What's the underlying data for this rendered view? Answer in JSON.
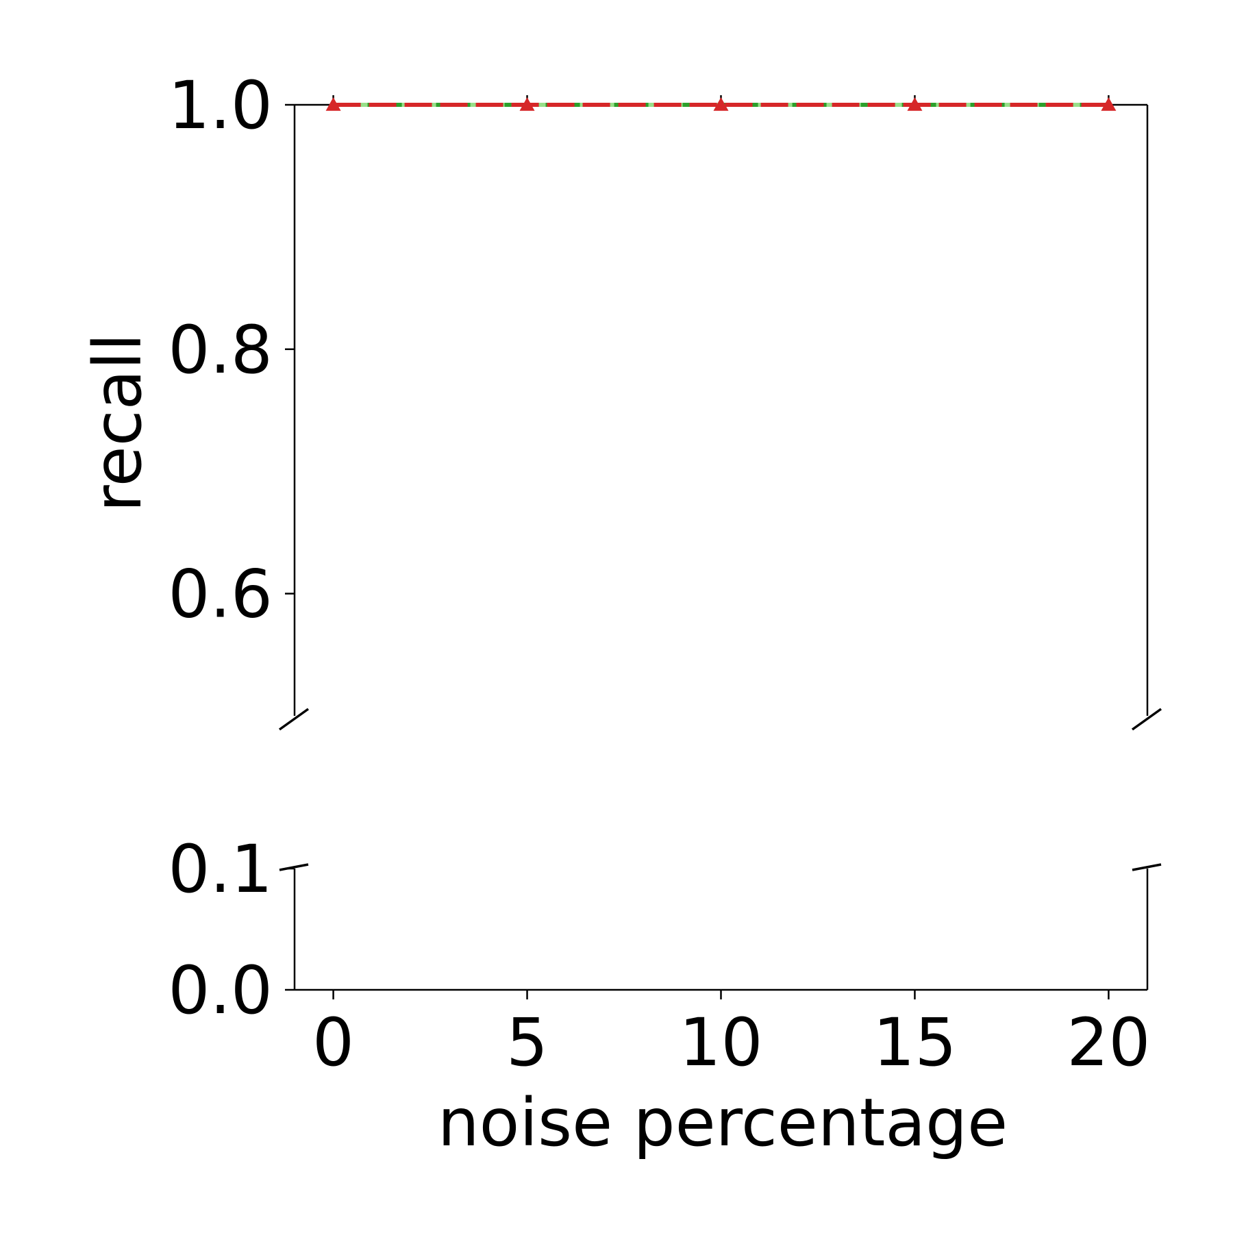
{
  "chart_data": {
    "type": "line",
    "broken_y_axis": true,
    "xlabel": "noise percentage",
    "ylabel": "recall",
    "x": [
      0,
      5,
      10,
      15,
      20
    ],
    "xlim": [
      -1,
      21
    ],
    "x_ticks": [
      "0",
      "5",
      "10",
      "15",
      "20"
    ],
    "panels": [
      {
        "ylim": [
          0.5,
          1.0
        ],
        "y_ticks": [
          0.6,
          0.8,
          1.0
        ],
        "y_tick_labels": [
          "0.6",
          "0.8",
          "1.0"
        ]
      },
      {
        "ylim": [
          0.0,
          0.1
        ],
        "y_ticks": [
          0.0,
          0.1
        ],
        "y_tick_labels": [
          "0.0",
          "0.1"
        ]
      }
    ],
    "series": [
      {
        "values": [
          1.0,
          1.0,
          1.0,
          1.0,
          1.0
        ],
        "color": "#aec7e8",
        "dash": "solid",
        "marker": "none"
      },
      {
        "values": [
          1.0,
          1.0,
          1.0,
          1.0,
          1.0
        ],
        "color": "#2ca02c",
        "dash": "solid",
        "marker": "none"
      },
      {
        "values": [
          1.0,
          1.0,
          1.0,
          1.0,
          1.0
        ],
        "color": "#98df8a",
        "dash": "dotted",
        "marker": "none"
      },
      {
        "values": [
          1.0,
          1.0,
          1.0,
          1.0,
          1.0
        ],
        "color": "#d62728",
        "dash": "dashed",
        "marker": "triangle"
      }
    ],
    "grid": false,
    "legend": "none"
  }
}
